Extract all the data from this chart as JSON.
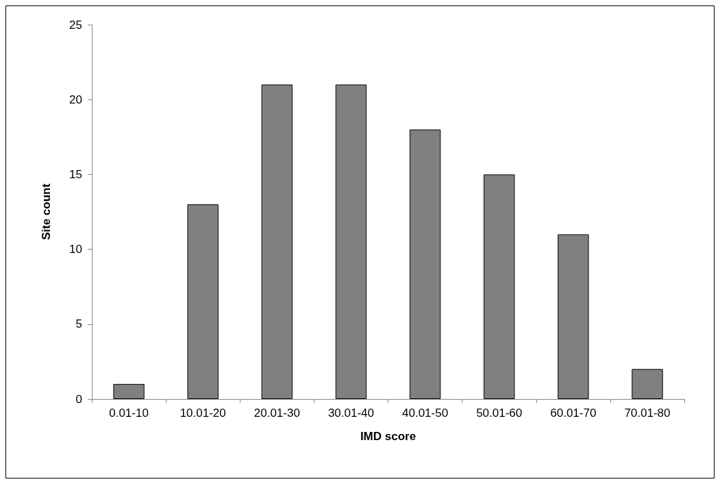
{
  "chart_data": {
    "type": "bar",
    "xlabel": "IMD score",
    "ylabel": "Site count",
    "categories": [
      "0.01-10",
      "10.01-20",
      "20.01-30",
      "30.01-40",
      "40.01-50",
      "50.01-60",
      "60.01-70",
      "70.01-80"
    ],
    "values": [
      1,
      13,
      21,
      21,
      18,
      15,
      11,
      2
    ],
    "color": "#808080",
    "ylim": [
      0,
      25
    ],
    "yticks": [
      0,
      5,
      10,
      15,
      20,
      25
    ],
    "grid": false
  }
}
